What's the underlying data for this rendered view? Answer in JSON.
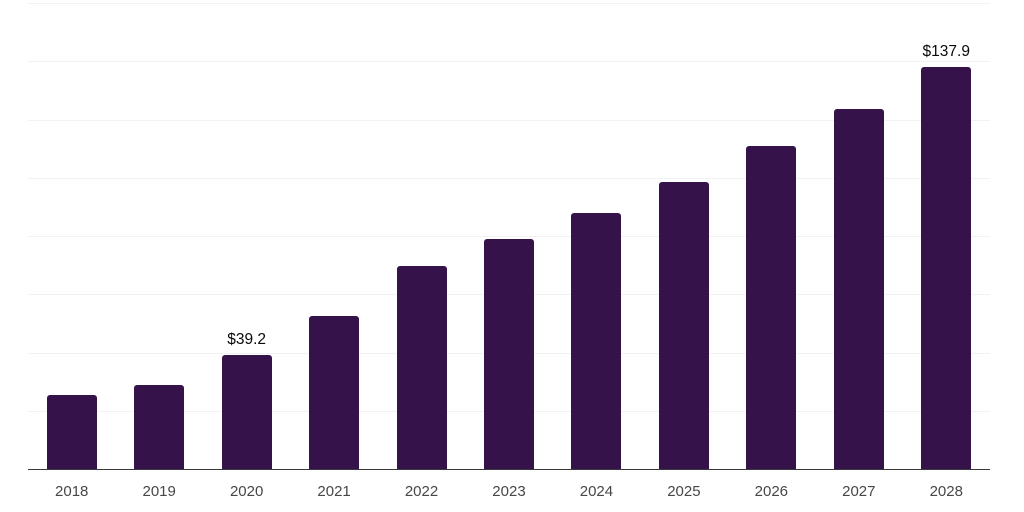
{
  "chart_data": {
    "type": "bar",
    "title": "",
    "xlabel": "",
    "ylabel": "",
    "categories": [
      "2018",
      "2019",
      "2020",
      "2021",
      "2022",
      "2023",
      "2024",
      "2025",
      "2026",
      "2027",
      "2028"
    ],
    "values": [
      25.3,
      28.8,
      39.2,
      52.5,
      69.6,
      78.9,
      87.8,
      98.4,
      110.8,
      123.5,
      137.9
    ],
    "bar_labels": [
      "",
      "",
      "$39.2",
      "",
      "",
      "",
      "",
      "",
      "",
      "",
      "$137.9"
    ],
    "ylim": [
      0,
      160
    ],
    "gridline_step": 20,
    "grid": true,
    "legend": false,
    "colors": {
      "bar": "#351249",
      "gridline": "#f2f2f2",
      "axis_line": "#3a3a3a",
      "value_label": "#0a0a0a",
      "tick_label": "#474747",
      "background": "#ffffff"
    }
  }
}
